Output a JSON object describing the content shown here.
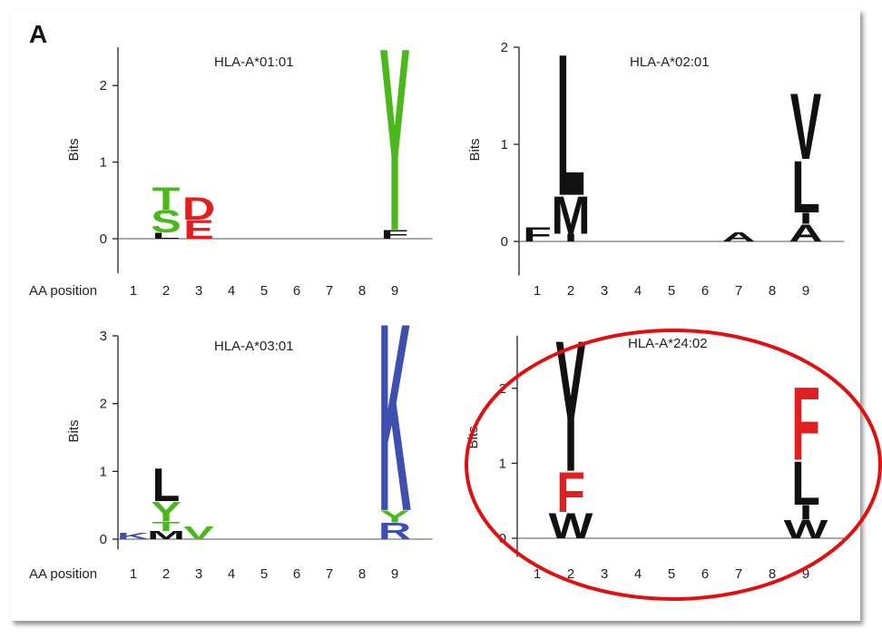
{
  "panel_label": "A",
  "x_label": "AA position",
  "y_label": "Bits",
  "colors": {
    "acidic": "#e02020",
    "polar": "#4ab81a",
    "hydrophobic": "#111111",
    "basic": "#3e4fb0",
    "highlight": "#e01010"
  },
  "chart_data": [
    {
      "type": "sequence-logo",
      "title": "HLA-A*01:01",
      "ylim": [
        -0.45,
        2.5
      ],
      "yticks": [
        0,
        1,
        2
      ],
      "positions": [
        "1",
        "2",
        "3",
        "4",
        "5",
        "6",
        "7",
        "8",
        "9"
      ],
      "stacks": [
        {
          "pos": 2,
          "letters": [
            {
              "aa": "L",
              "bits": 0.08,
              "color": "hydrophobic"
            },
            {
              "aa": "S",
              "bits": 0.3,
              "color": "polar"
            },
            {
              "aa": "T",
              "bits": 0.3,
              "color": "polar"
            }
          ]
        },
        {
          "pos": 3,
          "letters": [
            {
              "aa": "E",
              "bits": 0.25,
              "color": "acidic"
            },
            {
              "aa": "D",
              "bits": 0.3,
              "color": "acidic"
            }
          ]
        },
        {
          "pos": 9,
          "letters": [
            {
              "aa": "F",
              "bits": 0.12,
              "color": "hydrophobic"
            },
            {
              "aa": "Y",
              "bits": 2.45,
              "color": "polar"
            }
          ]
        }
      ]
    },
    {
      "type": "sequence-logo",
      "title": "HLA-A*02:01",
      "ylim": [
        -0.35,
        2.0
      ],
      "yticks": [
        0,
        1,
        2
      ],
      "positions": [
        "1",
        "2",
        "3",
        "4",
        "5",
        "6",
        "7",
        "8",
        "9"
      ],
      "stacks": [
        {
          "pos": 1,
          "letters": [
            {
              "aa": "F",
              "bits": 0.15,
              "color": "hydrophobic"
            }
          ]
        },
        {
          "pos": 2,
          "letters": [
            {
              "aa": "I",
              "bits": 0.08,
              "color": "hydrophobic"
            },
            {
              "aa": "M",
              "bits": 0.4,
              "color": "hydrophobic"
            },
            {
              "aa": "L",
              "bits": 1.5,
              "color": "hydrophobic"
            }
          ]
        },
        {
          "pos": 7,
          "letters": [
            {
              "aa": "A",
              "bits": 0.1,
              "color": "hydrophobic"
            }
          ]
        },
        {
          "pos": 9,
          "letters": [
            {
              "aa": "A",
              "bits": 0.18,
              "color": "hydrophobic"
            },
            {
              "aa": "I",
              "bits": 0.12,
              "color": "hydrophobic"
            },
            {
              "aa": "L",
              "bits": 0.55,
              "color": "hydrophobic"
            },
            {
              "aa": "V",
              "bits": 0.7,
              "color": "hydrophobic"
            }
          ]
        }
      ]
    },
    {
      "type": "sequence-logo",
      "title": "HLA-A*03:01",
      "ylim": [
        -0.15,
        3.0
      ],
      "yticks": [
        0,
        1,
        2,
        3
      ],
      "positions": [
        "1",
        "2",
        "3",
        "4",
        "5",
        "6",
        "7",
        "8",
        "9"
      ],
      "stacks": [
        {
          "pos": 1,
          "letters": [
            {
              "aa": "K",
              "bits": 0.1,
              "color": "basic"
            }
          ]
        },
        {
          "pos": 2,
          "letters": [
            {
              "aa": "M",
              "bits": 0.12,
              "color": "hydrophobic"
            },
            {
              "aa": "T",
              "bits": 0.14,
              "color": "polar"
            },
            {
              "aa": "Y",
              "bits": 0.3,
              "color": "polar"
            },
            {
              "aa": "L",
              "bits": 0.5,
              "color": "hydrophobic"
            }
          ]
        },
        {
          "pos": 3,
          "letters": [
            {
              "aa": "V",
              "bits": 0.2,
              "color": "polar"
            }
          ]
        },
        {
          "pos": 9,
          "letters": [
            {
              "aa": "R",
              "bits": 0.25,
              "color": "basic"
            },
            {
              "aa": "Y",
              "bits": 0.18,
              "color": "polar"
            },
            {
              "aa": "K",
              "bits": 2.85,
              "color": "basic"
            }
          ]
        }
      ]
    },
    {
      "type": "sequence-logo",
      "title": "HLA-A*24:02",
      "ylim": [
        -0.25,
        2.7
      ],
      "yticks": [
        0,
        1,
        2
      ],
      "positions": [
        "1",
        "2",
        "3",
        "4",
        "5",
        "6",
        "7",
        "8",
        "9"
      ],
      "highlighted": true,
      "stacks": [
        {
          "pos": 2,
          "letters": [
            {
              "aa": "W",
              "bits": 0.35,
              "color": "hydrophobic"
            },
            {
              "aa": "F",
              "bits": 0.55,
              "color": "acidic"
            },
            {
              "aa": "Y",
              "bits": 1.8,
              "color": "hydrophobic"
            }
          ]
        },
        {
          "pos": 9,
          "letters": [
            {
              "aa": "W",
              "bits": 0.25,
              "color": "hydrophobic"
            },
            {
              "aa": "I",
              "bits": 0.2,
              "color": "hydrophobic"
            },
            {
              "aa": "L",
              "bits": 0.6,
              "color": "hydrophobic"
            },
            {
              "aa": "F",
              "bits": 1.0,
              "color": "acidic"
            }
          ]
        }
      ]
    }
  ]
}
